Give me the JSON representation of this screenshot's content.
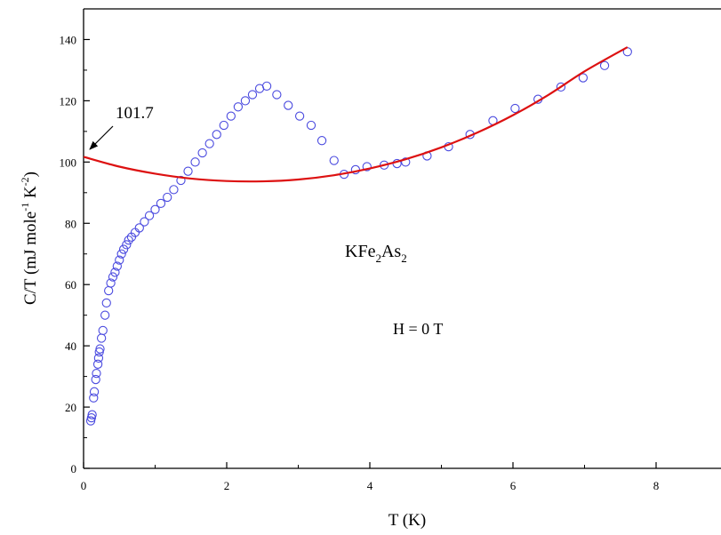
{
  "chart_data": {
    "type": "scatter",
    "xlabel": "T (K)",
    "ylabel_parts": {
      "main": "C/T (mJ mole",
      "sup1": "-1",
      "mid": " K",
      "sup2": "-2",
      "end": ")"
    },
    "xlim": [
      0,
      9
    ],
    "ylim": [
      0,
      150
    ],
    "x_ticks": [
      0,
      2,
      4,
      6,
      8
    ],
    "y_ticks": [
      0,
      20,
      40,
      60,
      80,
      100,
      120,
      140
    ],
    "grid": false,
    "series": [
      {
        "kind": "markers",
        "marker": "open-circle",
        "color": "#4a4adf",
        "points": [
          [
            0.1,
            15.5
          ],
          [
            0.11,
            16.5
          ],
          [
            0.12,
            17.5
          ],
          [
            0.14,
            23
          ],
          [
            0.15,
            25
          ],
          [
            0.17,
            29
          ],
          [
            0.18,
            31
          ],
          [
            0.2,
            34
          ],
          [
            0.21,
            36
          ],
          [
            0.22,
            38
          ],
          [
            0.23,
            39
          ],
          [
            0.25,
            42.5
          ],
          [
            0.27,
            45
          ],
          [
            0.3,
            50
          ],
          [
            0.32,
            54
          ],
          [
            0.35,
            58
          ],
          [
            0.38,
            60.5
          ],
          [
            0.41,
            62.5
          ],
          [
            0.44,
            64
          ],
          [
            0.47,
            66
          ],
          [
            0.5,
            68
          ],
          [
            0.53,
            70
          ],
          [
            0.56,
            71.5
          ],
          [
            0.6,
            73
          ],
          [
            0.63,
            74.5
          ],
          [
            0.67,
            75.5
          ],
          [
            0.72,
            77
          ],
          [
            0.78,
            78.5
          ],
          [
            0.85,
            80.5
          ],
          [
            0.92,
            82.5
          ],
          [
            1.0,
            84.5
          ],
          [
            1.08,
            86.5
          ],
          [
            1.17,
            88.5
          ],
          [
            1.26,
            91
          ],
          [
            1.36,
            94
          ],
          [
            1.46,
            97
          ],
          [
            1.56,
            100
          ],
          [
            1.66,
            103
          ],
          [
            1.76,
            106
          ],
          [
            1.86,
            109
          ],
          [
            1.96,
            112
          ],
          [
            2.06,
            115
          ],
          [
            2.16,
            118
          ],
          [
            2.26,
            120
          ],
          [
            2.36,
            122
          ],
          [
            2.46,
            124
          ],
          [
            2.56,
            124.8
          ],
          [
            2.7,
            122
          ],
          [
            2.86,
            118.5
          ],
          [
            3.02,
            115
          ],
          [
            3.18,
            112
          ],
          [
            3.33,
            107
          ],
          [
            3.5,
            100.5
          ],
          [
            3.64,
            96
          ],
          [
            3.8,
            97.5
          ],
          [
            3.96,
            98.5
          ],
          [
            4.2,
            99
          ],
          [
            4.38,
            99.5
          ],
          [
            4.5,
            100
          ],
          [
            4.8,
            102
          ],
          [
            5.1,
            105
          ],
          [
            5.4,
            109
          ],
          [
            5.72,
            113.5
          ],
          [
            6.03,
            117.5
          ],
          [
            6.35,
            120.5
          ],
          [
            6.67,
            124.5
          ],
          [
            6.98,
            127.5
          ],
          [
            7.28,
            131.5
          ],
          [
            7.6,
            136
          ]
        ]
      },
      {
        "kind": "fit-line",
        "color": "#dd1111",
        "points": [
          [
            0,
            101.7
          ],
          [
            0.5,
            98.5
          ],
          [
            1.0,
            96.2
          ],
          [
            1.5,
            94.6
          ],
          [
            2.0,
            93.8
          ],
          [
            2.5,
            93.7
          ],
          [
            3.0,
            94.3
          ],
          [
            3.5,
            95.7
          ],
          [
            4.0,
            97.9
          ],
          [
            4.5,
            100.9
          ],
          [
            5.0,
            104.8
          ],
          [
            5.5,
            109.6
          ],
          [
            6.0,
            115.3
          ],
          [
            6.5,
            122.0
          ],
          [
            7.0,
            129.6
          ],
          [
            7.6,
            137.5
          ]
        ]
      }
    ],
    "annotations": [
      {
        "text": "101.7",
        "arrow_to": [
          0,
          101.7
        ]
      },
      {
        "parts": [
          "KFe",
          "2",
          "As",
          "2"
        ]
      },
      {
        "text": "H = 0 T"
      }
    ]
  }
}
